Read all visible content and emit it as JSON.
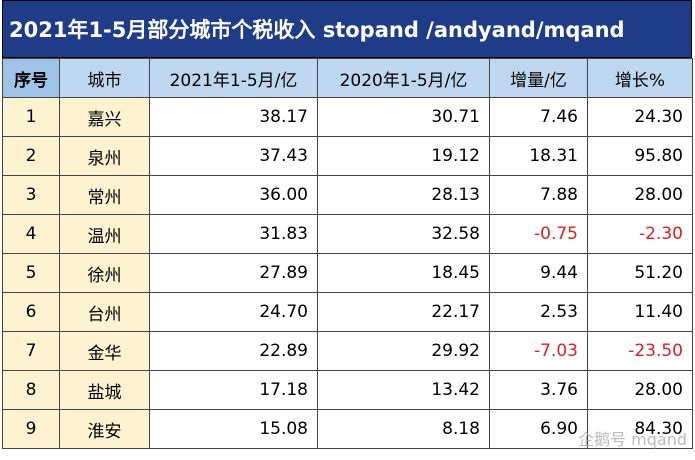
{
  "title": "2021年1-5月部分城市个税收入 stopand /andyand/mqand",
  "headers": [
    "序号",
    "城市",
    "2021年1-5月/亿",
    "2020年1-5月/亿",
    "增量/亿",
    "增长%"
  ],
  "rows": [
    {
      "no": "1",
      "city": "嘉兴",
      "y2021": "38.17",
      "y2020": "30.71",
      "delta": "7.46",
      "growth": "24.30",
      "neg": false
    },
    {
      "no": "2",
      "city": "泉州",
      "y2021": "37.43",
      "y2020": "19.12",
      "delta": "18.31",
      "growth": "95.80",
      "neg": false
    },
    {
      "no": "3",
      "city": "常州",
      "y2021": "36.00",
      "y2020": "28.13",
      "delta": "7.88",
      "growth": "28.00",
      "neg": false
    },
    {
      "no": "4",
      "city": "温州",
      "y2021": "31.83",
      "y2020": "32.58",
      "delta": "-0.75",
      "growth": "-2.30",
      "neg": true
    },
    {
      "no": "5",
      "city": "徐州",
      "y2021": "27.89",
      "y2020": "18.45",
      "delta": "9.44",
      "growth": "51.20",
      "neg": false
    },
    {
      "no": "6",
      "city": "台州",
      "y2021": "24.70",
      "y2020": "22.17",
      "delta": "2.53",
      "growth": "11.40",
      "neg": false
    },
    {
      "no": "7",
      "city": "金华",
      "y2021": "22.89",
      "y2020": "29.92",
      "delta": "-7.03",
      "growth": "-23.50",
      "neg": true
    },
    {
      "no": "8",
      "city": "盐城",
      "y2021": "17.18",
      "y2020": "13.42",
      "delta": "3.76",
      "growth": "28.00",
      "neg": false
    },
    {
      "no": "9",
      "city": "淮安",
      "y2021": "15.08",
      "y2020": "8.18",
      "delta": "6.90",
      "growth": "84.30",
      "neg": false
    }
  ],
  "watermark": "企鹅号 mqand",
  "colors": {
    "title_bg": "#1f3c88",
    "header_bg": "#bdd7ee",
    "label_bg": "#fdf3d0",
    "negative": "#e02020"
  }
}
